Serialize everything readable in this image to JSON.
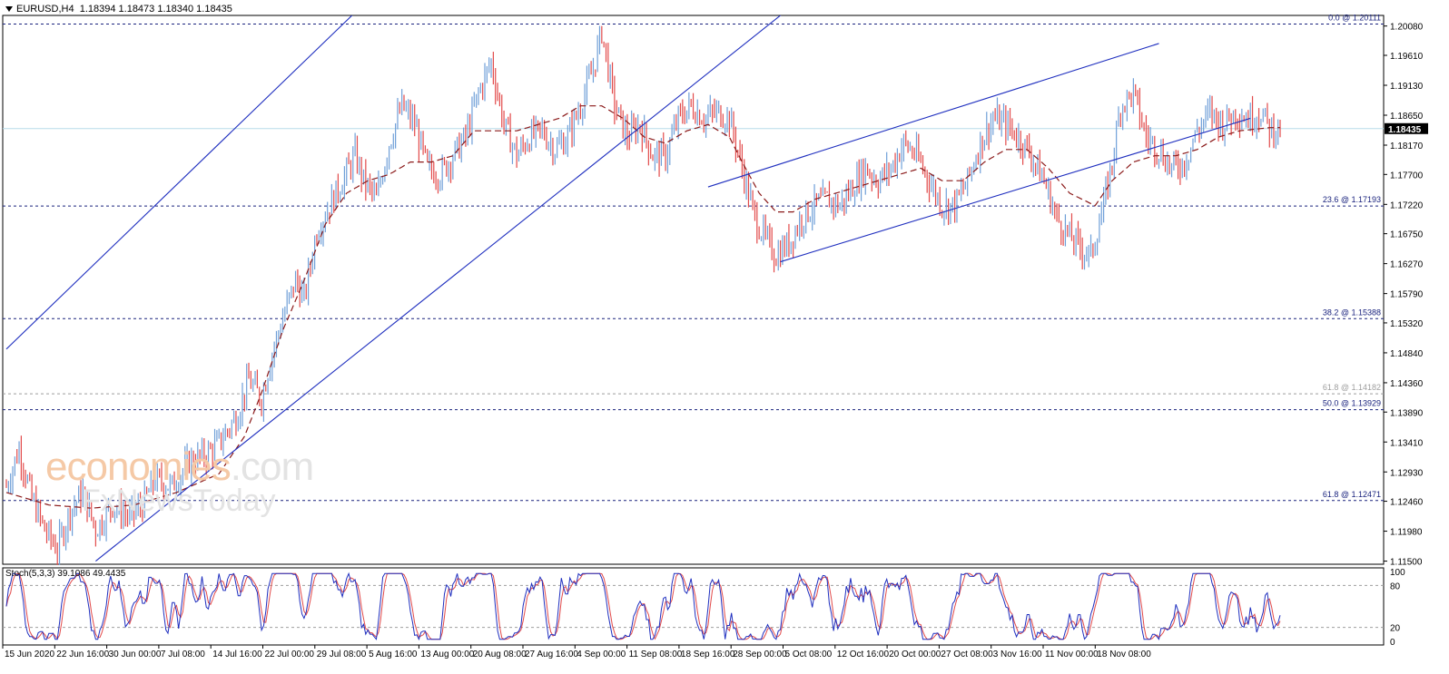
{
  "header": {
    "symbol": "EURUSD,H4",
    "ohlc": "1.18394 1.18473 1.18340 1.18435"
  },
  "stoch_header": "Stoch(5,3,3) 39.1086 49.4435",
  "watermark": {
    "line1_a": "economies",
    "line1_b": ".com",
    "line2": "FxNewsToday"
  },
  "colors": {
    "bull": "#6f9fd8",
    "bear": "#e24a4a",
    "ma": "#8b1a1a",
    "channel": "#1f2fbf",
    "fib_dark": "#1a237e",
    "fib_light": "#9e9e9e",
    "bid_line": "#b7dcea",
    "stoch_main": "#1f2fbf",
    "stoch_signal": "#e24a4a"
  },
  "chart_data": {
    "type": "candlestick",
    "symbol": "EURUSD",
    "timeframe": "H4",
    "ylim": [
      1.1145,
      1.2025
    ],
    "y_ticks": [
      "1.20080",
      "1.19610",
      "1.19130",
      "1.18650",
      "1.18170",
      "1.17700",
      "1.17220",
      "1.16750",
      "1.16270",
      "1.15790",
      "1.15320",
      "1.14840",
      "1.14360",
      "1.13890",
      "1.13410",
      "1.12930",
      "1.12460",
      "1.11980",
      "1.11500"
    ],
    "x_ticks": [
      "15 Jun 2020",
      "22 Jun 16:00",
      "30 Jun 00:00",
      "7 Jul 08:00",
      "14 Jul 16:00",
      "22 Jul 00:00",
      "29 Jul 08:00",
      "5 Aug 16:00",
      "13 Aug 00:00",
      "20 Aug 08:00",
      "27 Aug 16:00",
      "4 Sep 00:00",
      "11 Sep 08:00",
      "18 Sep 16:00",
      "28 Sep 00:00",
      "5 Oct 08:00",
      "12 Oct 16:00",
      "20 Oct 00:00",
      "27 Oct 08:00",
      "3 Nov 16:00",
      "11 Nov 00:00",
      "18 Nov 08:00"
    ],
    "current_price": 1.18435,
    "current_price_label": "1.18435",
    "fib_levels": [
      {
        "label": "0.0 @ 1.20111",
        "value": 1.20111,
        "style": "dark"
      },
      {
        "label": "23.6 @ 1.17193",
        "value": 1.17193,
        "style": "dark"
      },
      {
        "label": "38.2 @ 1.15388",
        "value": 1.15388,
        "style": "dark"
      },
      {
        "label": "61.8 @ 1.14182",
        "value": 1.14182,
        "style": "light"
      },
      {
        "label": "50.0 @ 1.13929",
        "value": 1.13929,
        "style": "dark"
      },
      {
        "label": "61.8 @ 1.12471",
        "value": 1.12471,
        "style": "dark"
      }
    ],
    "price_path": [
      [
        0,
        1.127
      ],
      [
        6,
        1.133
      ],
      [
        12,
        1.125
      ],
      [
        18,
        1.12
      ],
      [
        24,
        1.117
      ],
      [
        30,
        1.123
      ],
      [
        36,
        1.126
      ],
      [
        42,
        1.12
      ],
      [
        50,
        1.124
      ],
      [
        58,
        1.122
      ],
      [
        64,
        1.124
      ],
      [
        70,
        1.128
      ],
      [
        78,
        1.127
      ],
      [
        86,
        1.131
      ],
      [
        94,
        1.132
      ],
      [
        100,
        1.134
      ],
      [
        108,
        1.138
      ],
      [
        114,
        1.144
      ],
      [
        120,
        1.141
      ],
      [
        124,
        1.147
      ],
      [
        130,
        1.154
      ],
      [
        136,
        1.16
      ],
      [
        140,
        1.157
      ],
      [
        146,
        1.168
      ],
      [
        152,
        1.172
      ],
      [
        158,
        1.176
      ],
      [
        164,
        1.18
      ],
      [
        168,
        1.176
      ],
      [
        174,
        1.173
      ],
      [
        180,
        1.182
      ],
      [
        186,
        1.188
      ],
      [
        192,
        1.185
      ],
      [
        198,
        1.178
      ],
      [
        204,
        1.177
      ],
      [
        210,
        1.18
      ],
      [
        216,
        1.183
      ],
      [
        222,
        1.19
      ],
      [
        228,
        1.195
      ],
      [
        234,
        1.185
      ],
      [
        240,
        1.18
      ],
      [
        246,
        1.183
      ],
      [
        252,
        1.184
      ],
      [
        258,
        1.181
      ],
      [
        264,
        1.183
      ],
      [
        270,
        1.188
      ],
      [
        276,
        1.194
      ],
      [
        280,
        1.2
      ],
      [
        286,
        1.188
      ],
      [
        292,
        1.183
      ],
      [
        298,
        1.185
      ],
      [
        304,
        1.18
      ],
      [
        310,
        1.18
      ],
      [
        316,
        1.186
      ],
      [
        322,
        1.188
      ],
      [
        328,
        1.186
      ],
      [
        334,
        1.187
      ],
      [
        340,
        1.186
      ],
      [
        346,
        1.178
      ],
      [
        352,
        1.17
      ],
      [
        358,
        1.166
      ],
      [
        362,
        1.164
      ],
      [
        368,
        1.166
      ],
      [
        374,
        1.17
      ],
      [
        380,
        1.172
      ],
      [
        386,
        1.173
      ],
      [
        392,
        1.172
      ],
      [
        398,
        1.175
      ],
      [
        404,
        1.178
      ],
      [
        410,
        1.176
      ],
      [
        416,
        1.178
      ],
      [
        422,
        1.182
      ],
      [
        428,
        1.18
      ],
      [
        434,
        1.176
      ],
      [
        440,
        1.172
      ],
      [
        446,
        1.172
      ],
      [
        452,
        1.176
      ],
      [
        458,
        1.182
      ],
      [
        464,
        1.186
      ],
      [
        470,
        1.185
      ],
      [
        476,
        1.183
      ],
      [
        482,
        1.18
      ],
      [
        488,
        1.176
      ],
      [
        494,
        1.17
      ],
      [
        500,
        1.167
      ],
      [
        506,
        1.165
      ],
      [
        510,
        1.164
      ],
      [
        516,
        1.172
      ],
      [
        520,
        1.179
      ],
      [
        524,
        1.188
      ],
      [
        530,
        1.19
      ],
      [
        536,
        1.183
      ],
      [
        542,
        1.181
      ],
      [
        548,
        1.178
      ],
      [
        554,
        1.179
      ],
      [
        560,
        1.184
      ],
      [
        566,
        1.187
      ],
      [
        572,
        1.185
      ],
      [
        578,
        1.187
      ],
      [
        584,
        1.186
      ],
      [
        590,
        1.187
      ],
      [
        594,
        1.1844
      ]
    ],
    "moving_average": [
      [
        0,
        1.126
      ],
      [
        20,
        1.124
      ],
      [
        40,
        1.1235
      ],
      [
        60,
        1.124
      ],
      [
        80,
        1.126
      ],
      [
        100,
        1.129
      ],
      [
        112,
        1.135
      ],
      [
        120,
        1.142
      ],
      [
        130,
        1.152
      ],
      [
        140,
        1.16
      ],
      [
        150,
        1.169
      ],
      [
        160,
        1.174
      ],
      [
        170,
        1.176
      ],
      [
        180,
        1.177
      ],
      [
        190,
        1.179
      ],
      [
        200,
        1.179
      ],
      [
        210,
        1.18
      ],
      [
        220,
        1.184
      ],
      [
        230,
        1.184
      ],
      [
        240,
        1.184
      ],
      [
        250,
        1.185
      ],
      [
        260,
        1.186
      ],
      [
        270,
        1.188
      ],
      [
        280,
        1.188
      ],
      [
        290,
        1.186
      ],
      [
        300,
        1.183
      ],
      [
        310,
        1.182
      ],
      [
        320,
        1.184
      ],
      [
        330,
        1.185
      ],
      [
        340,
        1.183
      ],
      [
        346,
        1.179
      ],
      [
        354,
        1.174
      ],
      [
        362,
        1.171
      ],
      [
        370,
        1.171
      ],
      [
        380,
        1.173
      ],
      [
        390,
        1.174
      ],
      [
        400,
        1.175
      ],
      [
        410,
        1.176
      ],
      [
        420,
        1.177
      ],
      [
        430,
        1.178
      ],
      [
        440,
        1.176
      ],
      [
        450,
        1.176
      ],
      [
        460,
        1.179
      ],
      [
        470,
        1.181
      ],
      [
        480,
        1.181
      ],
      [
        490,
        1.178
      ],
      [
        500,
        1.174
      ],
      [
        506,
        1.173
      ],
      [
        512,
        1.172
      ],
      [
        520,
        1.176
      ],
      [
        530,
        1.179
      ],
      [
        540,
        1.18
      ],
      [
        550,
        1.18
      ],
      [
        560,
        1.181
      ],
      [
        570,
        1.183
      ],
      [
        580,
        1.184
      ],
      [
        594,
        1.1845
      ]
    ],
    "trendlines": [
      {
        "name": "outer channel upper",
        "p1": [
          0,
          1.149
        ],
        "p2": [
          240,
          1.228
        ]
      },
      {
        "name": "outer channel lower",
        "p1": [
          42,
          1.115
        ],
        "p2": [
          410,
          1.215
        ]
      },
      {
        "name": "rising channel upper",
        "p1": [
          330,
          1.175
        ],
        "p2": [
          542,
          1.198
        ]
      },
      {
        "name": "rising channel lower",
        "p1": [
          364,
          1.163
        ],
        "p2": [
          585,
          1.186
        ]
      }
    ],
    "stochastic": {
      "name": "Stoch(5,3,3)",
      "last_main": 39.1086,
      "last_signal": 49.4435,
      "levels": [
        20,
        80
      ],
      "ylim": [
        0,
        100
      ],
      "y_ticks": [
        "100",
        "80",
        "20",
        "0"
      ]
    },
    "xlabel": "",
    "ylabel": ""
  }
}
